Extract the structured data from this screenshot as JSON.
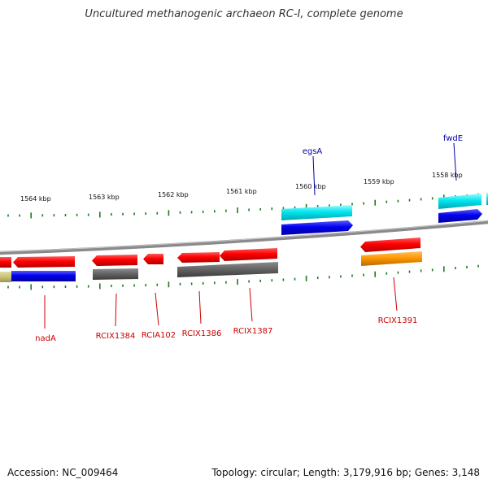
{
  "title": "Uncultured methanogenic archaeon RC-I, complete genome",
  "footer": {
    "accession": "Accession: NC_009464",
    "summary": "Topology: circular; Length: 3,179,916 bp; Genes: 3,148"
  },
  "colors": {
    "backbone": "#8a8a8a",
    "tick": "#1f7a1f",
    "scale_text": "#111111",
    "gene_label": "#cc0000",
    "upper_label": "#0000aa"
  },
  "scale": {
    "unit": "kbp",
    "labels": [
      "1564 kbp",
      "1563 kbp",
      "1562 kbp",
      "1561 kbp",
      "1560 kbp",
      "1559 kbp",
      "1558 kbp"
    ]
  },
  "genes": [
    {
      "name": "nadA",
      "color": "red"
    },
    {
      "name": "RCIX1384",
      "color": "red"
    },
    {
      "name": "RCIA102",
      "color": "red"
    },
    {
      "name": "RCIX1386",
      "color": "red"
    },
    {
      "name": "RCIX1387",
      "color": "red"
    },
    {
      "name": "RCIX1391",
      "color": "red"
    },
    {
      "name": "egsA",
      "color": "blue"
    },
    {
      "name": "fwdE",
      "color": "blue"
    }
  ]
}
